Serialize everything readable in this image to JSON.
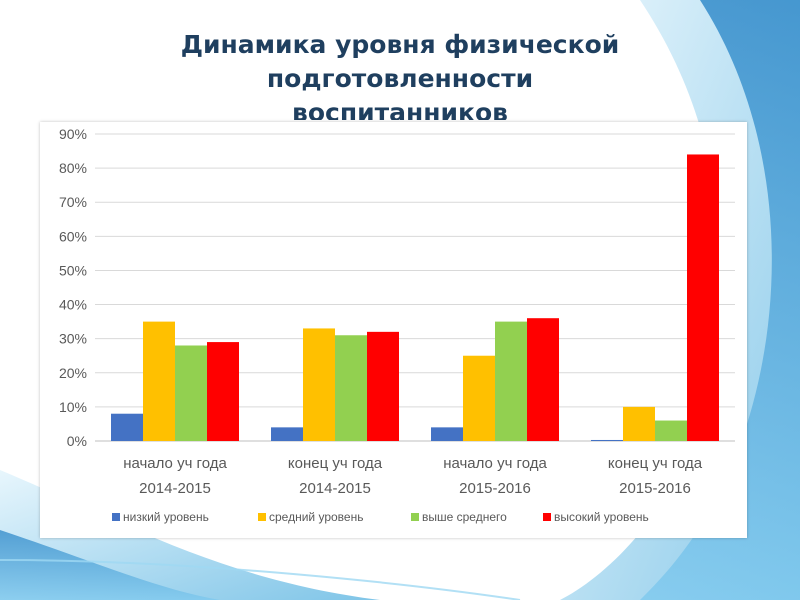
{
  "slide": {
    "title_lines": [
      "Динамика уровня физической",
      "подготовленности",
      "воспитанников"
    ]
  },
  "chart_data": {
    "type": "bar",
    "categories": [
      [
        "начало уч года",
        "2014-2015"
      ],
      [
        "конец уч года",
        "2014-2015"
      ],
      [
        "начало уч года",
        "2015-2016"
      ],
      [
        "конец уч года",
        "2015-2016"
      ]
    ],
    "series": [
      {
        "name": "низкий уровень",
        "color": "#4472c4",
        "values": [
          8,
          4,
          4,
          0.3
        ]
      },
      {
        "name": "средний уровень",
        "color": "#ffc000",
        "values": [
          35,
          33,
          25,
          10
        ]
      },
      {
        "name": "выше среднего",
        "color": "#92d050",
        "values": [
          28,
          31,
          35,
          6
        ]
      },
      {
        "name": "высокий уровень",
        "color": "#ff0000",
        "values": [
          29,
          32,
          36,
          84
        ]
      }
    ],
    "ylim": [
      0,
      90
    ],
    "y_ticks": [
      "0%",
      "10%",
      "20%",
      "30%",
      "40%",
      "50%",
      "60%",
      "70%",
      "80%",
      "90%"
    ],
    "grid": true,
    "legend_position": "bottom"
  }
}
